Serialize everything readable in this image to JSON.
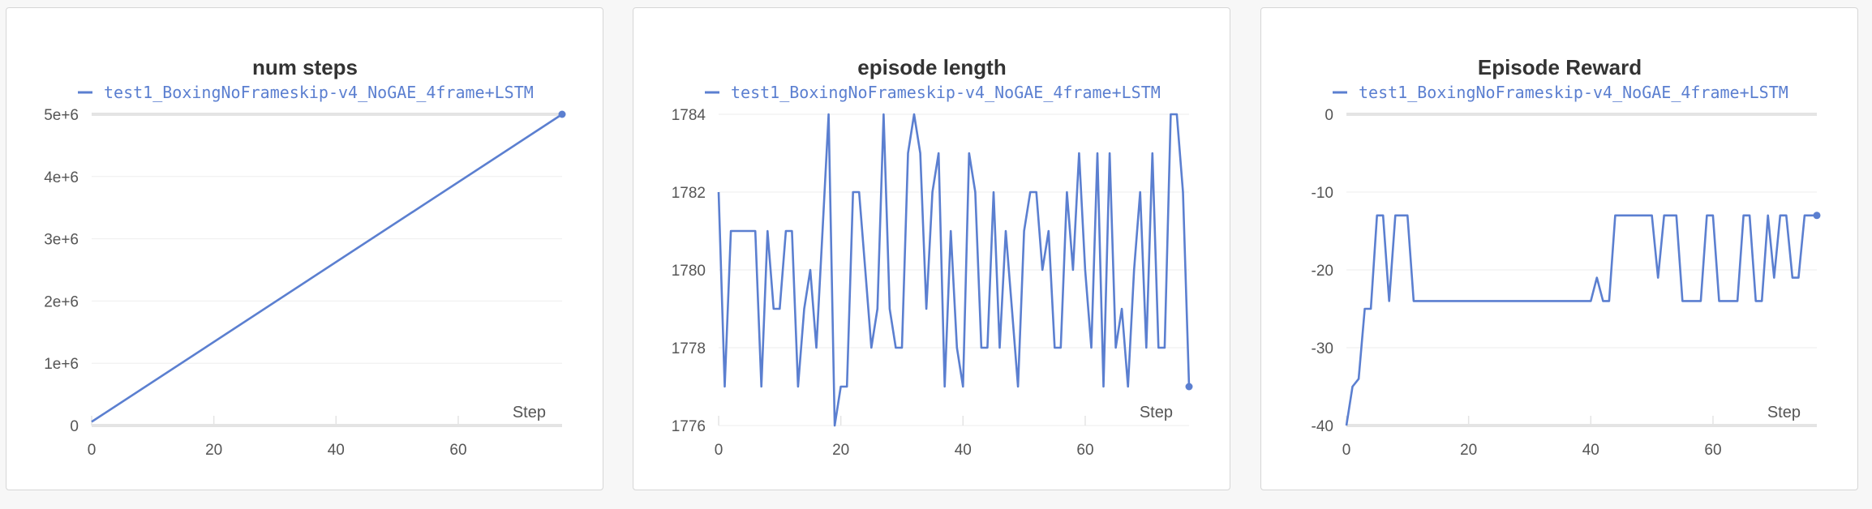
{
  "chart_data": [
    {
      "type": "line",
      "title": "num steps",
      "xlabel": "Step",
      "series": [
        {
          "name": "test1_BoxingNoFrameskip-v4_NoGAE_4frame+LSTM",
          "x": [
            0,
            77
          ],
          "y": [
            60000,
            5000000
          ]
        }
      ],
      "xticks": [
        0,
        20,
        40,
        60
      ],
      "xtick_labels": [
        "0",
        "20",
        "40",
        "60"
      ],
      "yticks": [
        0,
        1000000,
        2000000,
        3000000,
        4000000,
        5000000
      ],
      "ytick_labels": [
        "0",
        "1e+6",
        "2e+6",
        "3e+6",
        "4e+6",
        "5e+6"
      ],
      "xlim": [
        0,
        77
      ],
      "ylim": [
        0,
        5000000
      ],
      "grid": true,
      "legend": "top",
      "color": "#5b7fd0"
    },
    {
      "type": "line",
      "title": "episode length",
      "xlabel": "Step",
      "series": [
        {
          "name": "test1_BoxingNoFrameskip-v4_NoGAE_4frame+LSTM",
          "x": [
            0,
            1,
            2,
            3,
            4,
            5,
            6,
            7,
            8,
            9,
            10,
            11,
            12,
            13,
            14,
            15,
            16,
            17,
            18,
            19,
            20,
            21,
            22,
            23,
            24,
            25,
            26,
            27,
            28,
            29,
            30,
            31,
            32,
            33,
            34,
            35,
            36,
            37,
            38,
            39,
            40,
            41,
            42,
            43,
            44,
            45,
            46,
            47,
            48,
            49,
            50,
            51,
            52,
            53,
            54,
            55,
            56,
            57,
            58,
            59,
            60,
            61,
            62,
            63,
            64,
            65,
            66,
            67,
            68,
            69,
            70,
            71,
            72,
            73,
            74,
            75,
            76,
            77
          ],
          "y": [
            1782,
            1777,
            1781,
            1781,
            1781,
            1781,
            1781,
            1777,
            1781,
            1779,
            1779,
            1781,
            1781,
            1777,
            1779,
            1780,
            1778,
            1781,
            1784,
            1776,
            1777,
            1777,
            1782,
            1782,
            1780,
            1778,
            1779,
            1784,
            1779,
            1778,
            1778,
            1783,
            1784,
            1783,
            1779,
            1782,
            1783,
            1777,
            1781,
            1778,
            1777,
            1783,
            1782,
            1778,
            1778,
            1782,
            1778,
            1781,
            1779,
            1777,
            1781,
            1782,
            1782,
            1780,
            1781,
            1778,
            1778,
            1782,
            1780,
            1783,
            1780,
            1778,
            1783,
            1777,
            1783,
            1778,
            1779,
            1777,
            1780,
            1782,
            1778,
            1783,
            1778,
            1778,
            1784,
            1784,
            1782,
            1777
          ]
        }
      ],
      "xticks": [
        0,
        20,
        40,
        60
      ],
      "xtick_labels": [
        "0",
        "20",
        "40",
        "60"
      ],
      "yticks": [
        1776,
        1778,
        1780,
        1782,
        1784
      ],
      "ytick_labels": [
        "1776",
        "1778",
        "1780",
        "1782",
        "1784"
      ],
      "xlim": [
        0,
        77
      ],
      "ylim": [
        1776,
        1784
      ],
      "grid": true,
      "legend": "top",
      "color": "#5b7fd0"
    },
    {
      "type": "line",
      "title": "Episode Reward",
      "xlabel": "Step",
      "series": [
        {
          "name": "test1_BoxingNoFrameskip-v4_NoGAE_4frame+LSTM",
          "x": [
            0,
            1,
            2,
            3,
            4,
            5,
            6,
            7,
            8,
            9,
            10,
            11,
            12,
            13,
            14,
            15,
            16,
            17,
            18,
            19,
            20,
            21,
            22,
            23,
            24,
            25,
            26,
            27,
            28,
            29,
            30,
            31,
            32,
            33,
            34,
            35,
            36,
            37,
            38,
            39,
            40,
            41,
            42,
            43,
            44,
            45,
            46,
            47,
            48,
            49,
            50,
            51,
            52,
            53,
            54,
            55,
            56,
            57,
            58,
            59,
            60,
            61,
            62,
            63,
            64,
            65,
            66,
            67,
            68,
            69,
            70,
            71,
            72,
            73,
            74,
            75,
            76,
            77
          ],
          "y": [
            -40,
            -35,
            -34,
            -25,
            -25,
            -13,
            -13,
            -24,
            -13,
            -13,
            -13,
            -24,
            -24,
            -24,
            -24,
            -24,
            -24,
            -24,
            -24,
            -24,
            -24,
            -24,
            -24,
            -24,
            -24,
            -24,
            -24,
            -24,
            -24,
            -24,
            -24,
            -24,
            -24,
            -24,
            -24,
            -24,
            -24,
            -24,
            -24,
            -24,
            -24,
            -21,
            -24,
            -24,
            -13,
            -13,
            -13,
            -13,
            -13,
            -13,
            -13,
            -21,
            -13,
            -13,
            -13,
            -24,
            -24,
            -24,
            -24,
            -13,
            -13,
            -24,
            -24,
            -24,
            -24,
            -13,
            -13,
            -24,
            -24,
            -13,
            -21,
            -13,
            -13,
            -21,
            -21,
            -13,
            -13,
            -13
          ]
        }
      ],
      "xticks": [
        0,
        20,
        40,
        60
      ],
      "xtick_labels": [
        "0",
        "20",
        "40",
        "60"
      ],
      "yticks": [
        -40,
        -30,
        -20,
        -10,
        0
      ],
      "ytick_labels": [
        "-40",
        "-30",
        "-20",
        "-10",
        "0"
      ],
      "xlim": [
        0,
        77
      ],
      "ylim": [
        -40,
        0
      ],
      "grid": true,
      "legend": "top",
      "color": "#5b7fd0"
    }
  ]
}
